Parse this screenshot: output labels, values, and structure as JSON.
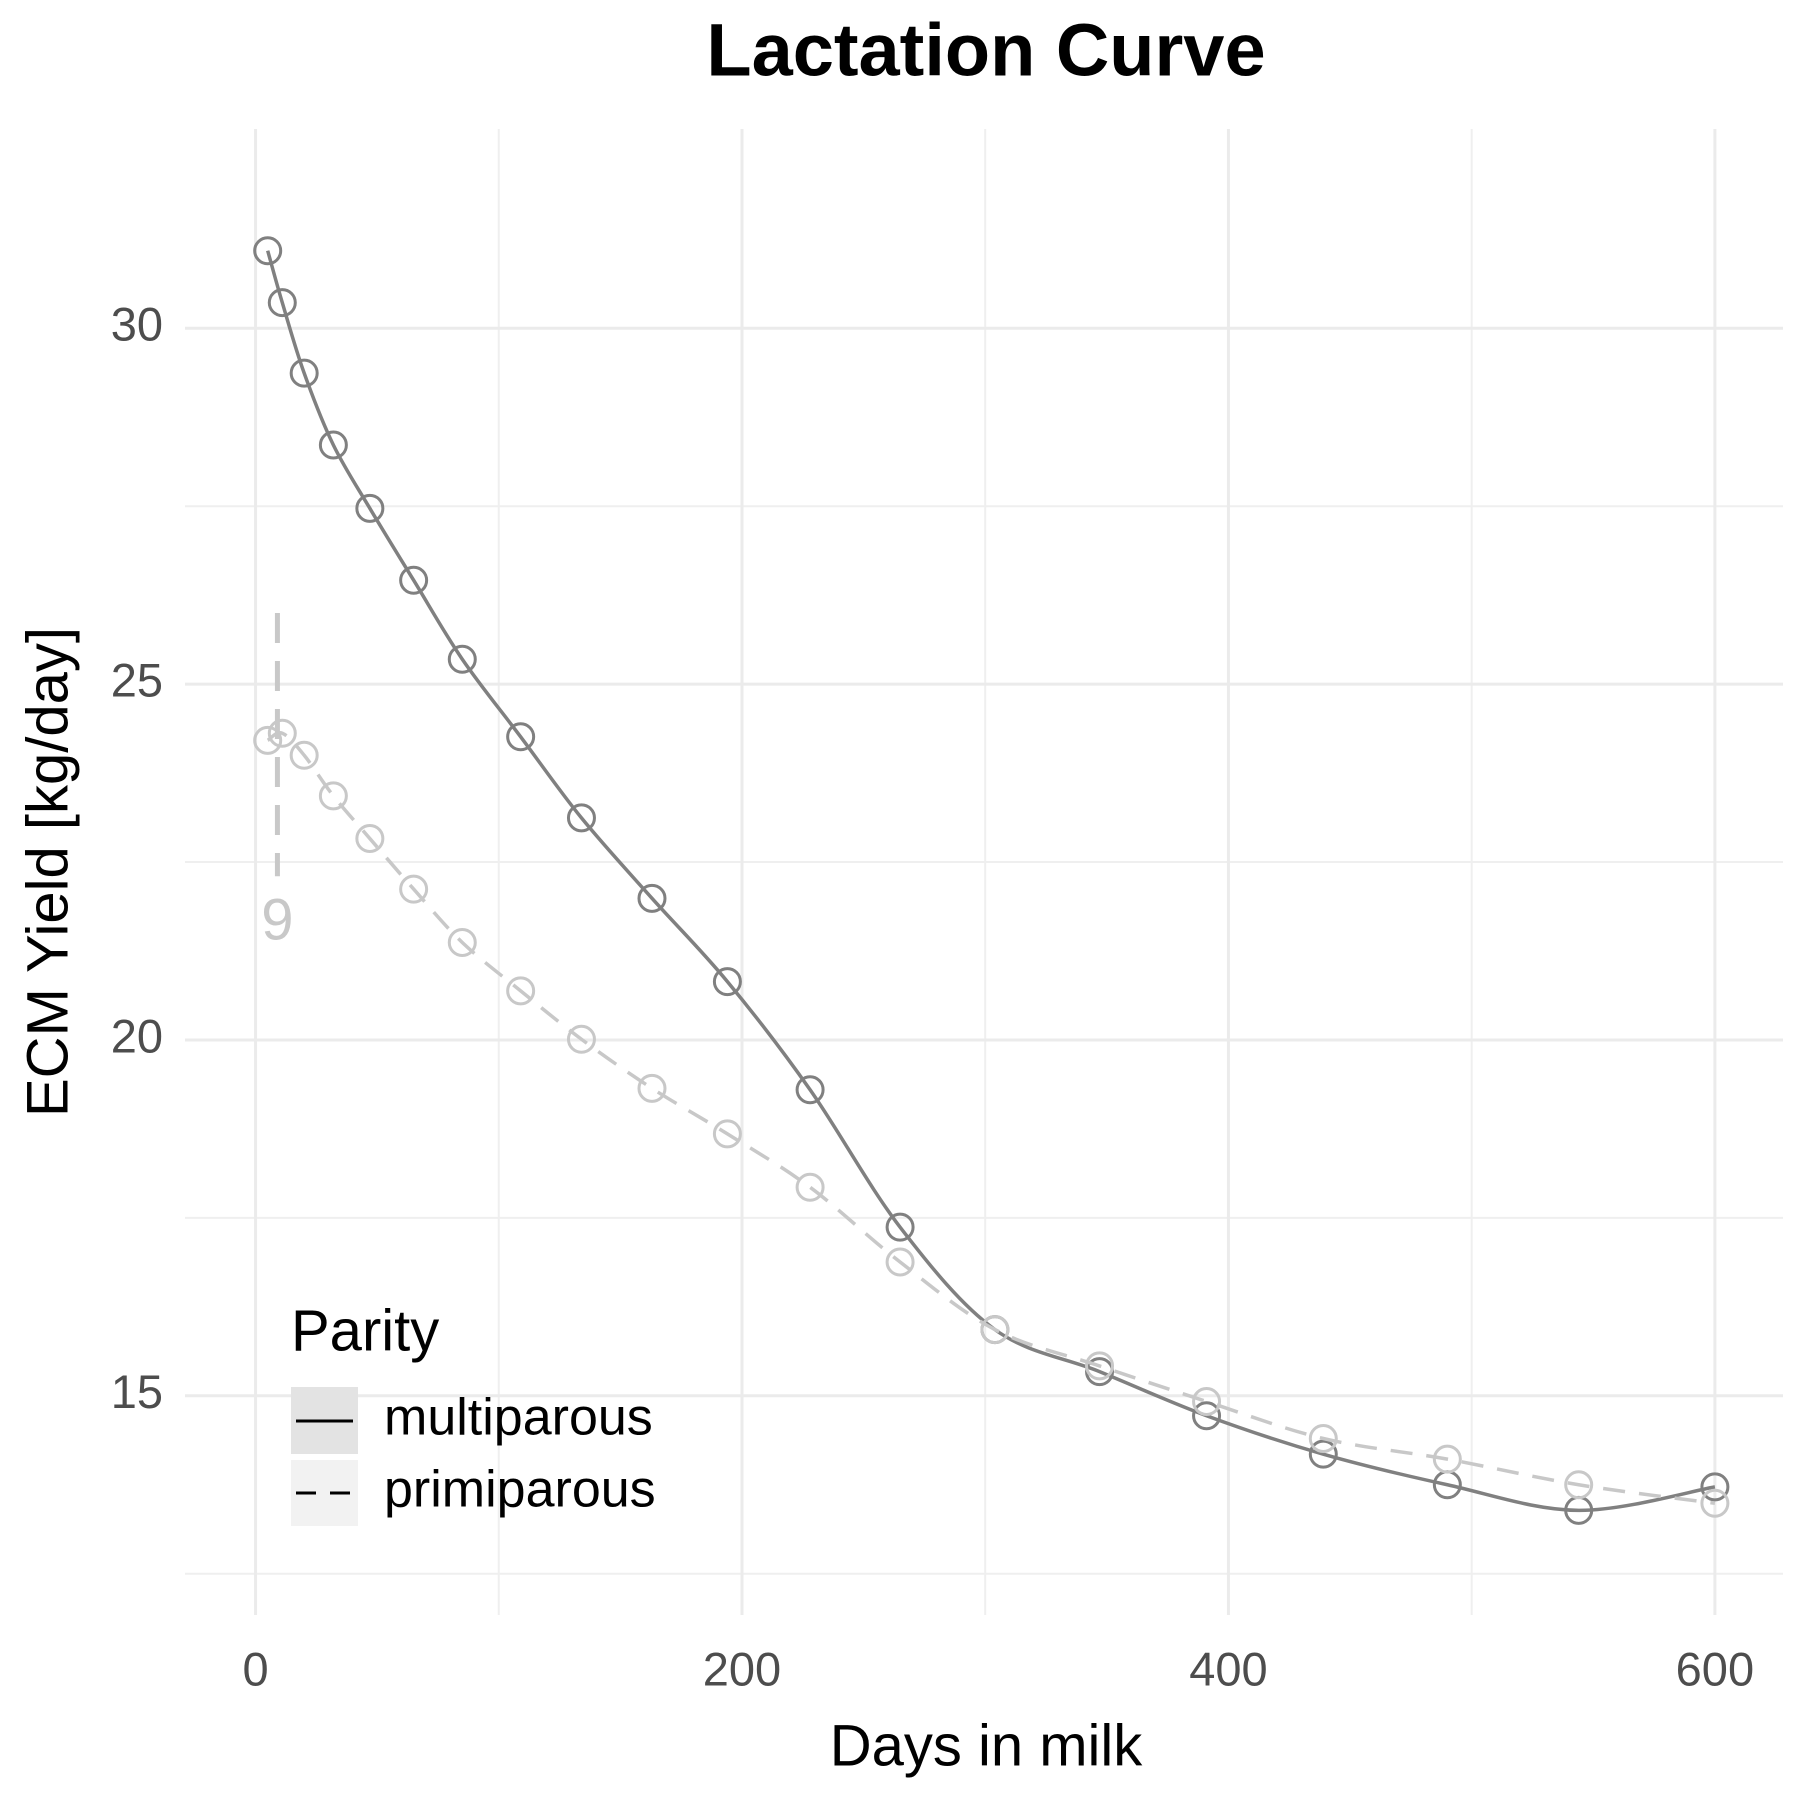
{
  "chart_data": {
    "type": "line",
    "title": "Lactation Curve",
    "x_label": "Days in milk",
    "y_label": "ECM Yield [kg/day]",
    "x": [
      5,
      11,
      20,
      32,
      47,
      65,
      85,
      109,
      134,
      163,
      194,
      228,
      265,
      304,
      347,
      391,
      439,
      490,
      544,
      600
    ],
    "series": [
      {
        "name": "multiparous",
        "color": "#808080",
        "linetype": "solid",
        "values": [
          31.09,
          30.36,
          29.37,
          28.36,
          27.47,
          26.46,
          25.35,
          24.26,
          23.12,
          21.99,
          20.82,
          19.3,
          17.37,
          15.93,
          15.34,
          14.72,
          14.18,
          13.75,
          13.39,
          13.72
        ]
      },
      {
        "name": "primiparous",
        "color": "#c8c8c8",
        "linetype": "dashed",
        "values": [
          24.21,
          24.31,
          24.0,
          23.43,
          22.83,
          22.12,
          21.37,
          20.69,
          20.01,
          19.32,
          18.68,
          17.93,
          16.88,
          15.93,
          15.42,
          14.92,
          14.4,
          14.11,
          13.75,
          13.49
        ]
      }
    ],
    "xlim": [
      -29,
      628
    ],
    "ylim": [
      11.92,
      32.8
    ],
    "xticks": [
      0,
      200,
      400,
      600
    ],
    "yticks": [
      15,
      20,
      25,
      30
    ],
    "xminorticks": [
      100,
      300,
      500
    ],
    "yminorticks": [
      12.5,
      17.5,
      22.5,
      27.5
    ],
    "grid": true,
    "legend_title": "Parity",
    "legend": "bottom-left",
    "annotation": {
      "x": 9,
      "ymin": 22.3,
      "ymax": 26.0,
      "color": "#c8c8c8"
    }
  }
}
